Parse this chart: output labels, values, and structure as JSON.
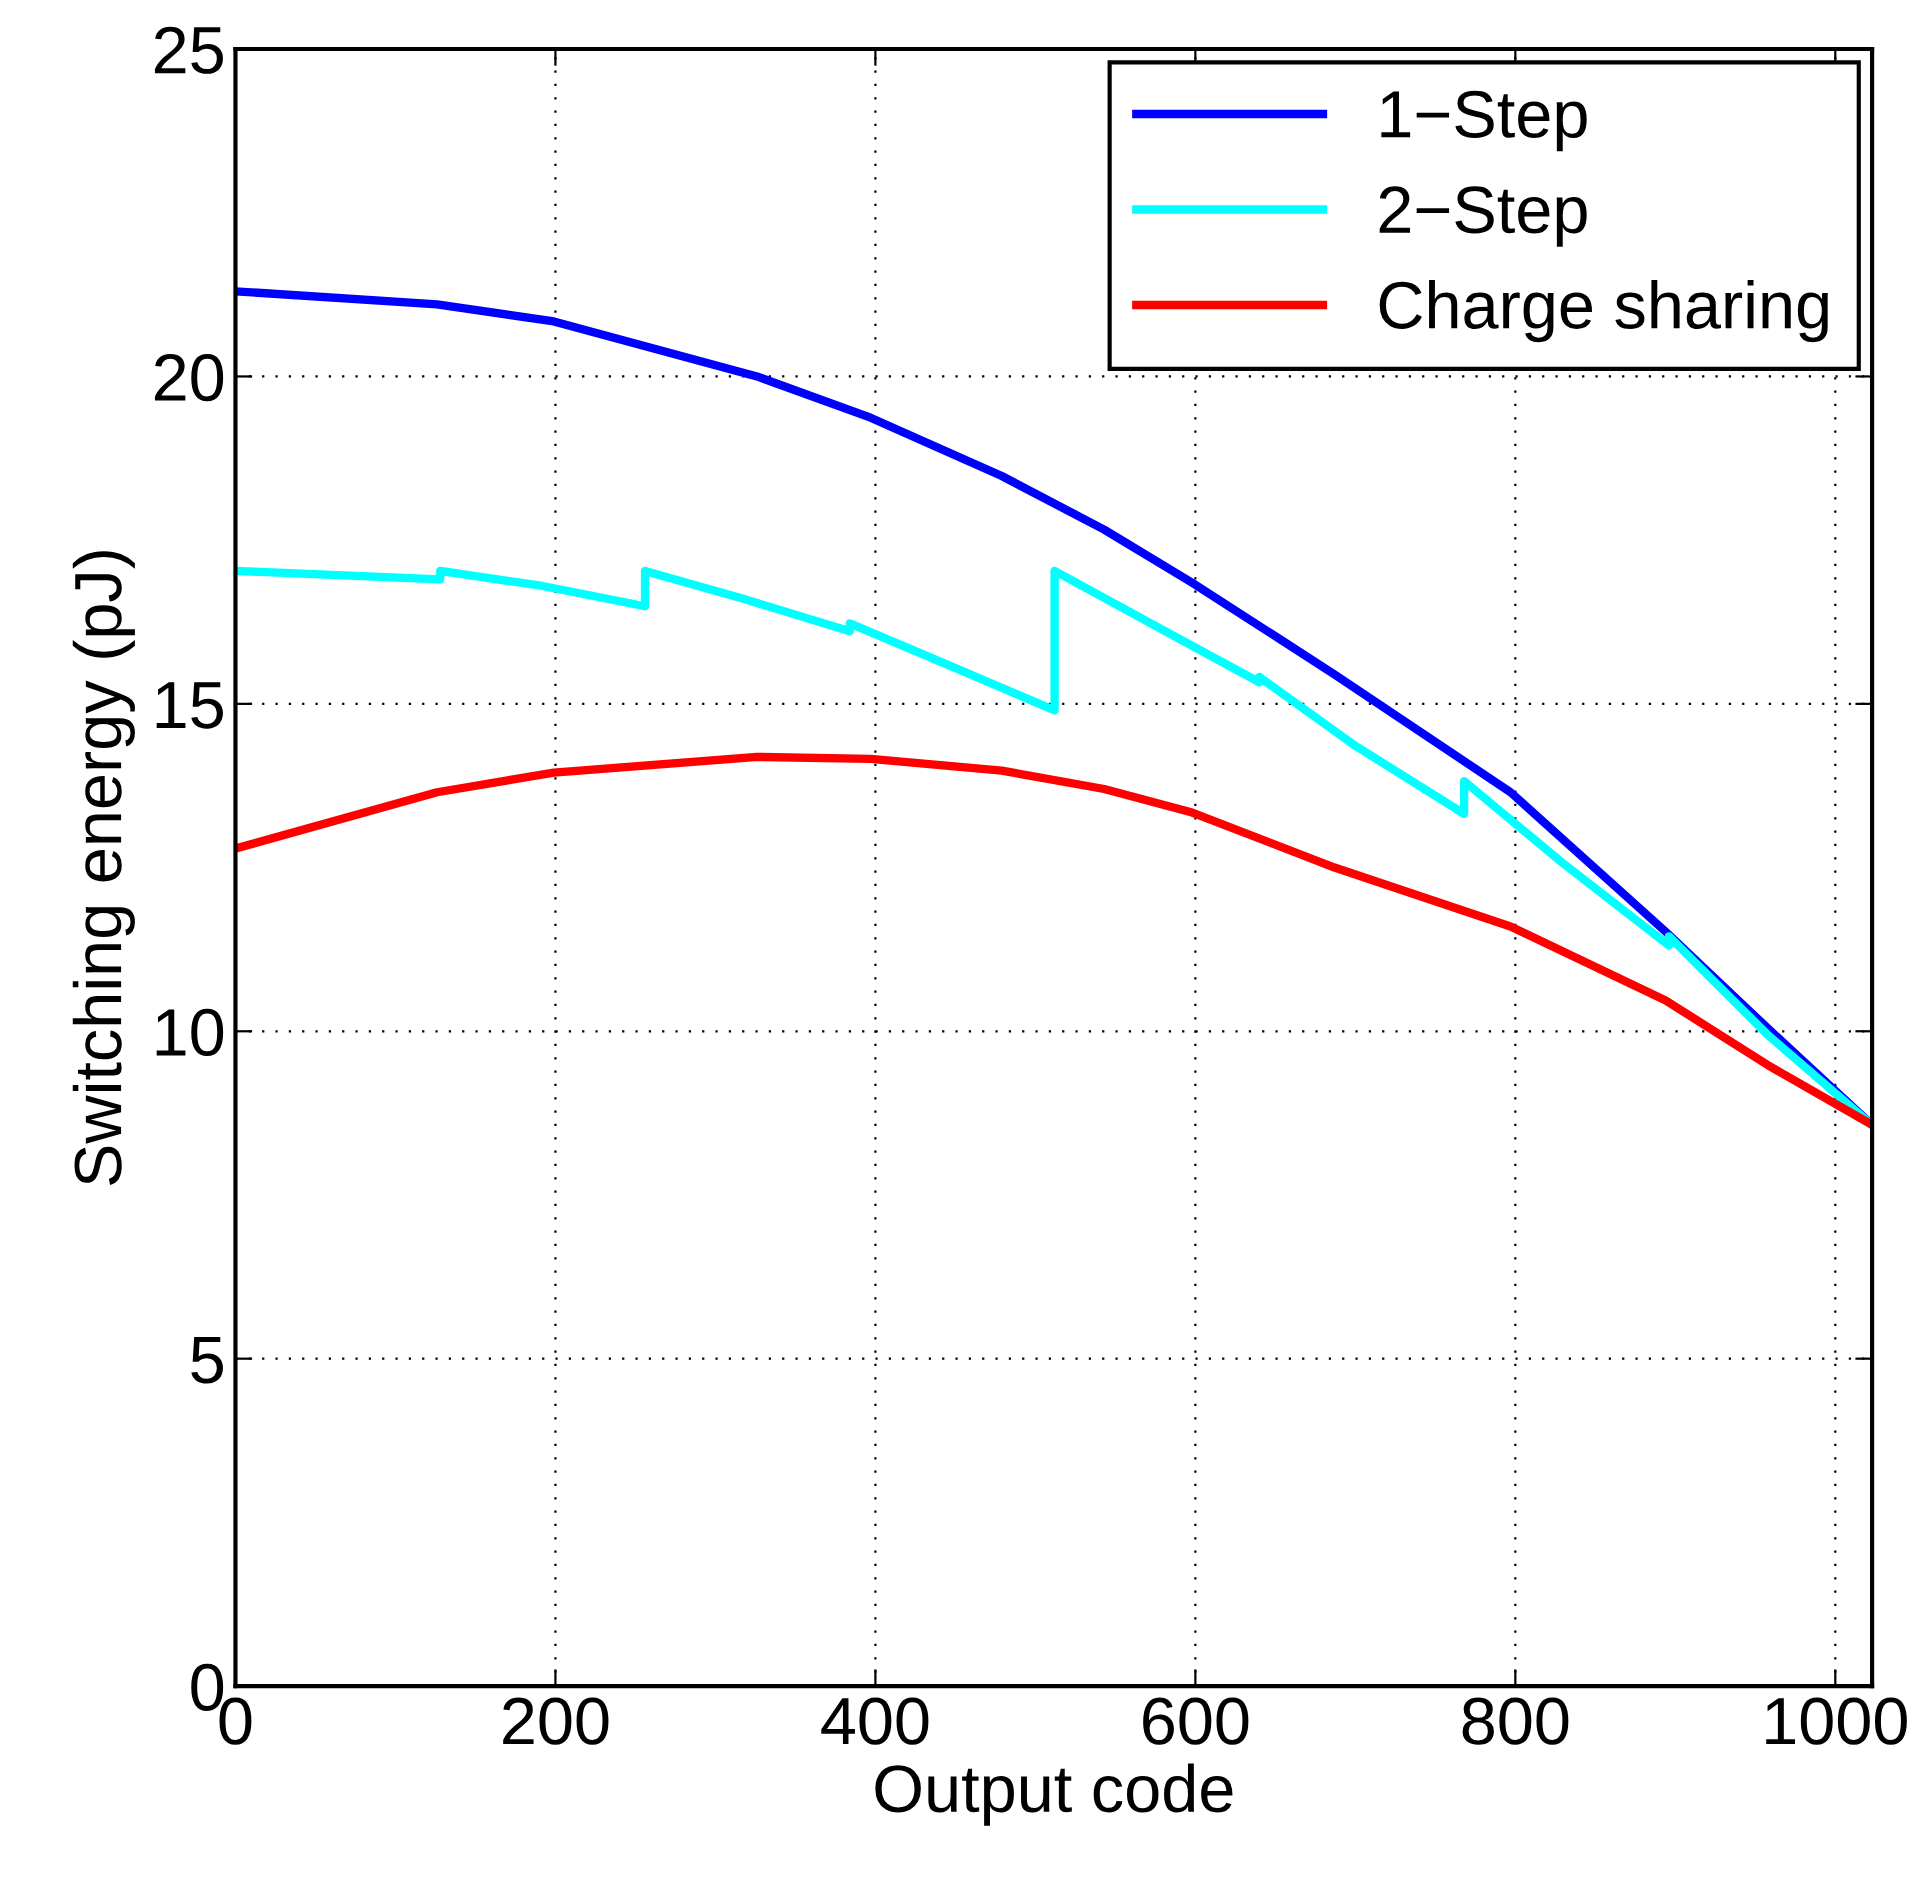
{
  "chart_data": {
    "type": "line",
    "xlabel": "Output code",
    "ylabel": "Switching energy (pJ)",
    "xlim": [
      0,
      1023
    ],
    "ylim": [
      0,
      25
    ],
    "xticks": [
      0,
      200,
      400,
      600,
      800,
      1000
    ],
    "yticks": [
      0,
      5,
      10,
      15,
      20,
      25
    ],
    "grid": true,
    "legend": "top right",
    "line_style": "solid",
    "marker": "none",
    "series": [
      {
        "name": "1−Step",
        "color": "#0000ff",
        "x": [
          0,
          126,
          199,
          326,
          397,
          479,
          543,
          598,
          687,
          797,
          894,
          958,
          1023
        ],
        "values": [
          21.3,
          21.1,
          20.84,
          20.0,
          19.37,
          18.48,
          17.66,
          16.85,
          15.45,
          13.65,
          11.52,
          10.04,
          8.57
        ]
      },
      {
        "name": "2−Step",
        "color": "#00ffff",
        "x": [
          0,
          128,
          128,
          192,
          256,
          256,
          318,
          384,
          384,
          445,
          512,
          512,
          575,
          640,
          640,
          700,
          768,
          768,
          829,
          896,
          896,
          958,
          1023
        ],
        "values": [
          17.03,
          16.9,
          17.03,
          16.8,
          16.49,
          17.03,
          16.6,
          16.11,
          16.23,
          15.6,
          14.9,
          17.03,
          16.19,
          15.33,
          15.41,
          14.36,
          13.32,
          13.82,
          12.58,
          11.31,
          11.45,
          9.94,
          8.57
        ]
      },
      {
        "name": "Charge sharing",
        "color": "#ff0000",
        "x": [
          0,
          126,
          199,
          326,
          397,
          479,
          543,
          598,
          687,
          797,
          894,
          958,
          1023
        ],
        "values": [
          12.79,
          13.65,
          13.95,
          14.19,
          14.16,
          13.98,
          13.7,
          13.34,
          12.5,
          11.6,
          10.47,
          9.48,
          8.57
        ]
      }
    ]
  }
}
